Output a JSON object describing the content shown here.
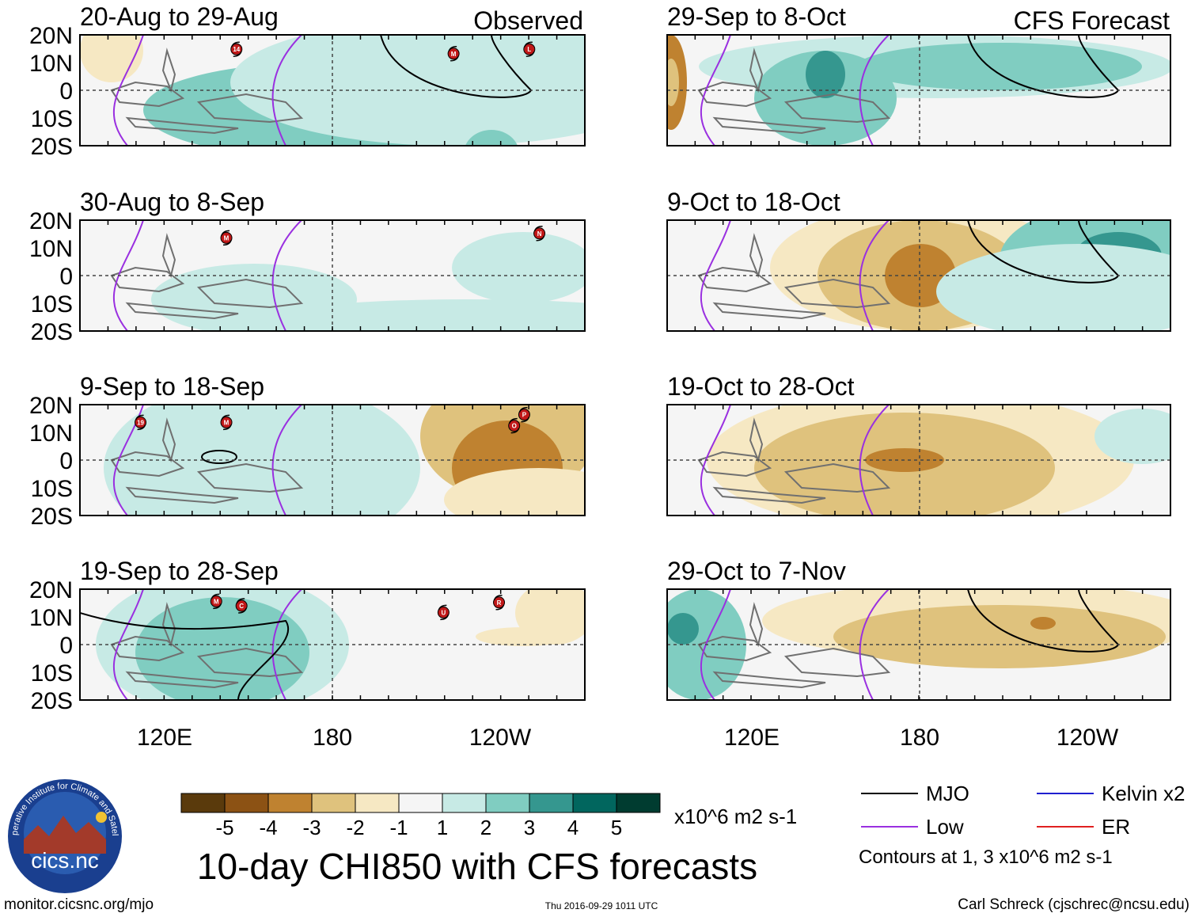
{
  "figure": {
    "title": "10-day CHI850 with CFS forecasts",
    "units": "x10^6 m2 s-1",
    "column_labels": {
      "left": "Observed",
      "right": "CFS Forecast"
    },
    "lat_labels": [
      "20N",
      "10N",
      "0",
      "10S",
      "20S"
    ],
    "lon_labels": [
      "120E",
      "180",
      "120W"
    ],
    "footer": {
      "url": "monitor.cicsnc.org/mjo",
      "timestamp": "Thu 2016-09-29 1011 UTC",
      "author": "Carl Schreck (cjschrec@ncsu.edu)"
    },
    "logo": {
      "ring_text": "Cooperative Institute for Climate and Satellites",
      "name": "cics.nc"
    }
  },
  "colorbar": {
    "colors": [
      "#5a3a0c",
      "#8c5214",
      "#bf8230",
      "#dfc27d",
      "#f6e8c3",
      "#f5f5f5",
      "#c7eae5",
      "#80cdc1",
      "#35978f",
      "#01665e",
      "#003c30"
    ],
    "tick_labels": [
      "-5",
      "-4",
      "-3",
      "-2",
      "-1",
      "1",
      "2",
      "3",
      "4",
      "5"
    ]
  },
  "legend": {
    "items": [
      {
        "label": "MJO",
        "color": "#000000"
      },
      {
        "label": "Kelvin x2",
        "color": "#1f1fd0"
      },
      {
        "label": "Low",
        "color": "#9a30e0"
      },
      {
        "label": "ER",
        "color": "#e02020"
      }
    ],
    "note": "Contours at 1, 3 x10^6 m2 s-1"
  },
  "panels": [
    {
      "period": "20-Aug to 29-Aug",
      "storms": [
        "14",
        "M",
        "L"
      ]
    },
    {
      "period": "30-Aug to 8-Sep",
      "storms": [
        "M",
        "N"
      ]
    },
    {
      "period": "9-Sep to 18-Sep",
      "storms": [
        "19",
        "M",
        "O",
        "P"
      ]
    },
    {
      "period": "19-Sep to 28-Sep",
      "storms": [
        "M",
        "C",
        "U",
        "R"
      ]
    },
    {
      "period": "29-Sep to 8-Oct",
      "storms": []
    },
    {
      "period": "9-Oct to 18-Oct",
      "storms": []
    },
    {
      "period": "19-Oct to 28-Oct",
      "storms": []
    },
    {
      "period": "29-Oct to 7-Nov",
      "storms": []
    }
  ]
}
